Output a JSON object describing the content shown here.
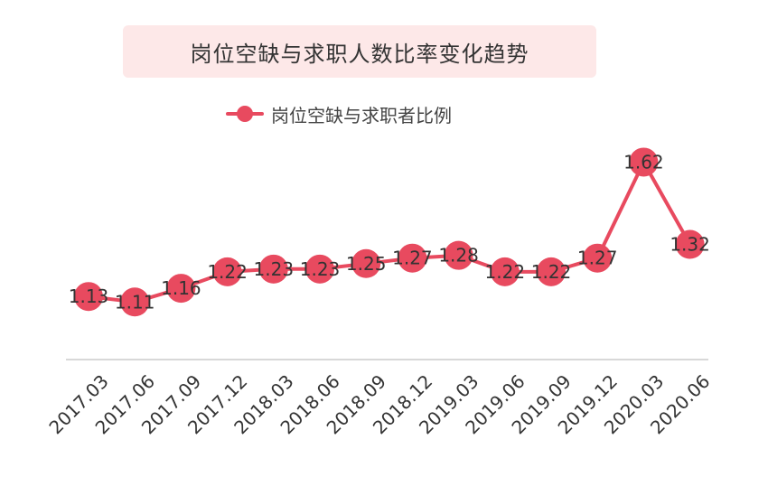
{
  "chart_data": {
    "type": "line",
    "title": "岗位空缺与求职人数比率变化趋势",
    "categories": [
      "2017.03",
      "2017.06",
      "2017.09",
      "2017.12",
      "2018.03",
      "2018.06",
      "2018.09",
      "2018.12",
      "2019.03",
      "2019.06",
      "2019.09",
      "2019.12",
      "2020.03",
      "2020.06"
    ],
    "series": [
      {
        "name": "岗位空缺与求职者比例",
        "values": [
          1.13,
          1.11,
          1.16,
          1.22,
          1.23,
          1.23,
          1.25,
          1.27,
          1.28,
          1.22,
          1.22,
          1.27,
          1.62,
          1.32
        ],
        "labels": [
          "1.13",
          "1.11",
          "1.16",
          "1.22",
          "1.23",
          "1.23",
          "1.25",
          "1.27",
          "1.28",
          "1.22",
          "1.22",
          "1.27",
          "1.62",
          "1.32"
        ]
      }
    ],
    "xlabel": "",
    "ylabel": "",
    "ylim": [
      0.9,
      1.75
    ],
    "grid": false,
    "legend": "top-center",
    "color": "#e84a5f"
  }
}
